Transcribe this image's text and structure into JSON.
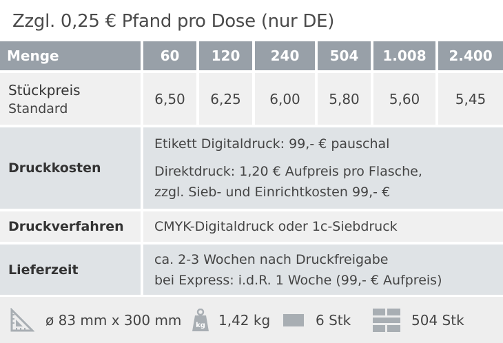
{
  "title": "Zzgl. 0,25 € Pfand pro Dose (nur DE)",
  "header": {
    "label": "Menge",
    "quantities": [
      "60",
      "120",
      "240",
      "504",
      "1.008",
      "2.400"
    ]
  },
  "rows": {
    "stueckpreis": {
      "label": "Stückpreis",
      "sublabel": "Standard",
      "prices": [
        "6,50",
        "6,25",
        "6,00",
        "5,80",
        "5,60",
        "5,45"
      ]
    },
    "druckkosten": {
      "label": "Druckkosten",
      "line1": "Etikett Digitaldruck: 99,- € pauschal",
      "line2": "Direktdruck: 1,20 € Aufpreis pro Flasche,",
      "line3": "zzgl. Sieb- und Einrichtkosten 99,- €"
    },
    "druckverfahren": {
      "label": "Druckverfahren",
      "value": "CMYK-Digitaldruck oder 1c-Siebdruck"
    },
    "lieferzeit": {
      "label": "Lieferzeit",
      "line1": "ca. 2-3 Wochen nach Druckfreigabe",
      "line2": "bei Express:  i.d.R. 1 Woche (99,- € Aufpreis)"
    }
  },
  "info": {
    "dimensions": "ø 83 mm x 300 mm",
    "dimensions_icon": "ruler-triangle-icon",
    "weight": "1,42 kg",
    "weight_icon": "weight-icon",
    "weight_icon_text": "kg",
    "pack": "6 Stk",
    "pack_icon": "box-icon",
    "pallet": "504 Stk",
    "pallet_icon": "pallet-icon"
  },
  "colors": {
    "header_bg": "#98a0a8",
    "row_light": "#f0f0f0",
    "row_dark": "#dfe3e6",
    "icon": "#a8aeb3"
  }
}
